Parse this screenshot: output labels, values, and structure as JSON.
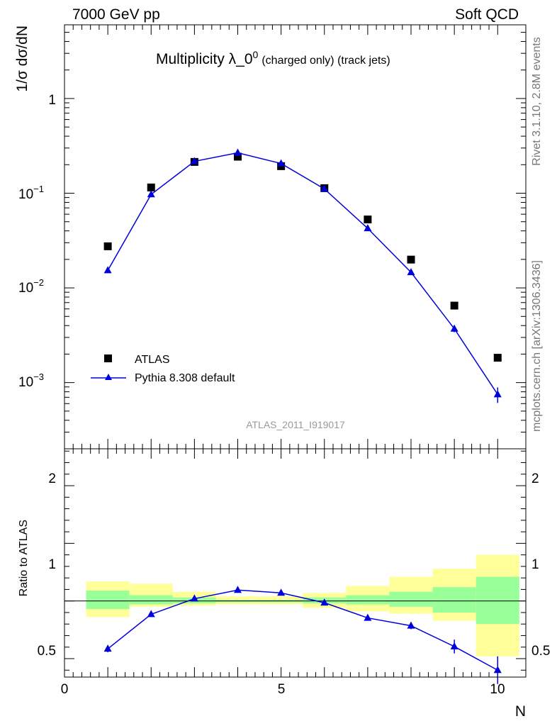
{
  "header": {
    "energy": "7000 GeV pp",
    "category": "Soft QCD"
  },
  "side_labels": {
    "rivet": "Rivet 3.1.10,  2.8M events",
    "mcplots": "mcplots.cern.ch [arXiv:1306.3436]"
  },
  "colors": {
    "mc": "#0000dd",
    "data": "#000000",
    "band_stat": "#99ff99",
    "band_total": "#ffff99"
  },
  "chart_data": [
    {
      "type": "scatter",
      "title": "Multiplicity λ_0",
      "title_sup": "0",
      "title_suffix": "(charged only) (track jets)",
      "ylabel": "1/σ dσ/dN",
      "yscale": "log",
      "ylim": [
        0.0002,
        6
      ],
      "xlim": [
        0,
        10.65
      ],
      "y_tick_labels": [
        "1",
        "10",
        "10",
        "10"
      ],
      "y_tick_exponents": [
        "",
        "−1",
        "−2",
        "−3"
      ],
      "watermark": "ATLAS_2011_I919017",
      "legend": {
        "placement": "bottom-left",
        "entries": [
          "ATLAS",
          "Pythia 8.308 default"
        ]
      },
      "series": [
        {
          "name": "ATLAS",
          "marker": "square",
          "x": [
            1,
            2,
            3,
            4,
            5,
            6,
            7,
            8,
            9,
            10
          ],
          "y": [
            0.0275,
            0.115,
            0.214,
            0.243,
            0.193,
            0.113,
            0.0528,
            0.0199,
            0.0065,
            0.00183
          ]
        },
        {
          "name": "Pythia 8.308 default",
          "marker": "triangle",
          "line": true,
          "x": [
            1,
            2,
            3,
            4,
            5,
            6,
            7,
            8,
            9,
            10
          ],
          "y": [
            0.0153,
            0.097,
            0.217,
            0.267,
            0.206,
            0.111,
            0.0425,
            0.0146,
            0.0037,
            0.00075
          ],
          "err": [
            0.0006,
            0.003,
            0.005,
            0.005,
            0.004,
            0.003,
            0.0012,
            0.0006,
            0.0003,
            0.00014
          ]
        }
      ]
    },
    {
      "type": "scatter",
      "ylabel": "Ratio to ATLAS",
      "xlabel": "N",
      "ylim": [
        0.34,
        2.32
      ],
      "xlim": [
        0,
        10.65
      ],
      "x_ticks": [
        0,
        5,
        10
      ],
      "y_ticks": [
        0.5,
        1,
        2
      ],
      "y_tick_labels": [
        "0.5",
        "1",
        "2"
      ],
      "bands": [
        {
          "x0": 0.5,
          "x1": 1.5,
          "stat_lo": 0.93,
          "stat_hi": 1.09,
          "tot_lo": 0.86,
          "tot_hi": 1.17
        },
        {
          "x0": 1.5,
          "x1": 2.5,
          "stat_lo": 0.97,
          "stat_hi": 1.05,
          "tot_lo": 0.95,
          "tot_hi": 1.15
        },
        {
          "x0": 2.5,
          "x1": 3.5,
          "stat_lo": 0.98,
          "stat_hi": 1.03,
          "tot_lo": 0.96,
          "tot_hi": 1.08
        },
        {
          "x0": 3.5,
          "x1": 4.5,
          "stat_lo": 0.99,
          "stat_hi": 1.01,
          "tot_lo": 0.97,
          "tot_hi": 1.04
        },
        {
          "x0": 4.5,
          "x1": 5.5,
          "stat_lo": 0.99,
          "stat_hi": 1.01,
          "tot_lo": 0.97,
          "tot_hi": 1.04
        },
        {
          "x0": 5.5,
          "x1": 6.5,
          "stat_lo": 0.98,
          "stat_hi": 1.03,
          "tot_lo": 0.94,
          "tot_hi": 1.07
        },
        {
          "x0": 6.5,
          "x1": 7.5,
          "stat_lo": 0.97,
          "stat_hi": 1.05,
          "tot_lo": 0.91,
          "tot_hi": 1.13
        },
        {
          "x0": 7.5,
          "x1": 8.5,
          "stat_lo": 0.95,
          "stat_hi": 1.08,
          "tot_lo": 0.89,
          "tot_hi": 1.21
        },
        {
          "x0": 8.5,
          "x1": 9.5,
          "stat_lo": 0.9,
          "stat_hi": 1.12,
          "tot_lo": 0.83,
          "tot_hi": 1.28
        },
        {
          "x0": 9.5,
          "x1": 10.5,
          "stat_lo": 0.8,
          "stat_hi": 1.21,
          "tot_lo": 0.52,
          "tot_hi": 1.4
        }
      ],
      "series": [
        {
          "name": "Pythia 8.308 default",
          "marker": "triangle",
          "line": true,
          "x": [
            1,
            2,
            3,
            4,
            5,
            6,
            7,
            8,
            9,
            10
          ],
          "y": [
            0.585,
            0.885,
            1.02,
            1.095,
            1.07,
            0.985,
            0.853,
            0.785,
            0.605,
            0.4
          ],
          "err": [
            0.03,
            0.015,
            0.01,
            0.01,
            0.01,
            0.01,
            0.015,
            0.03,
            0.06,
            0.12
          ]
        }
      ]
    }
  ]
}
